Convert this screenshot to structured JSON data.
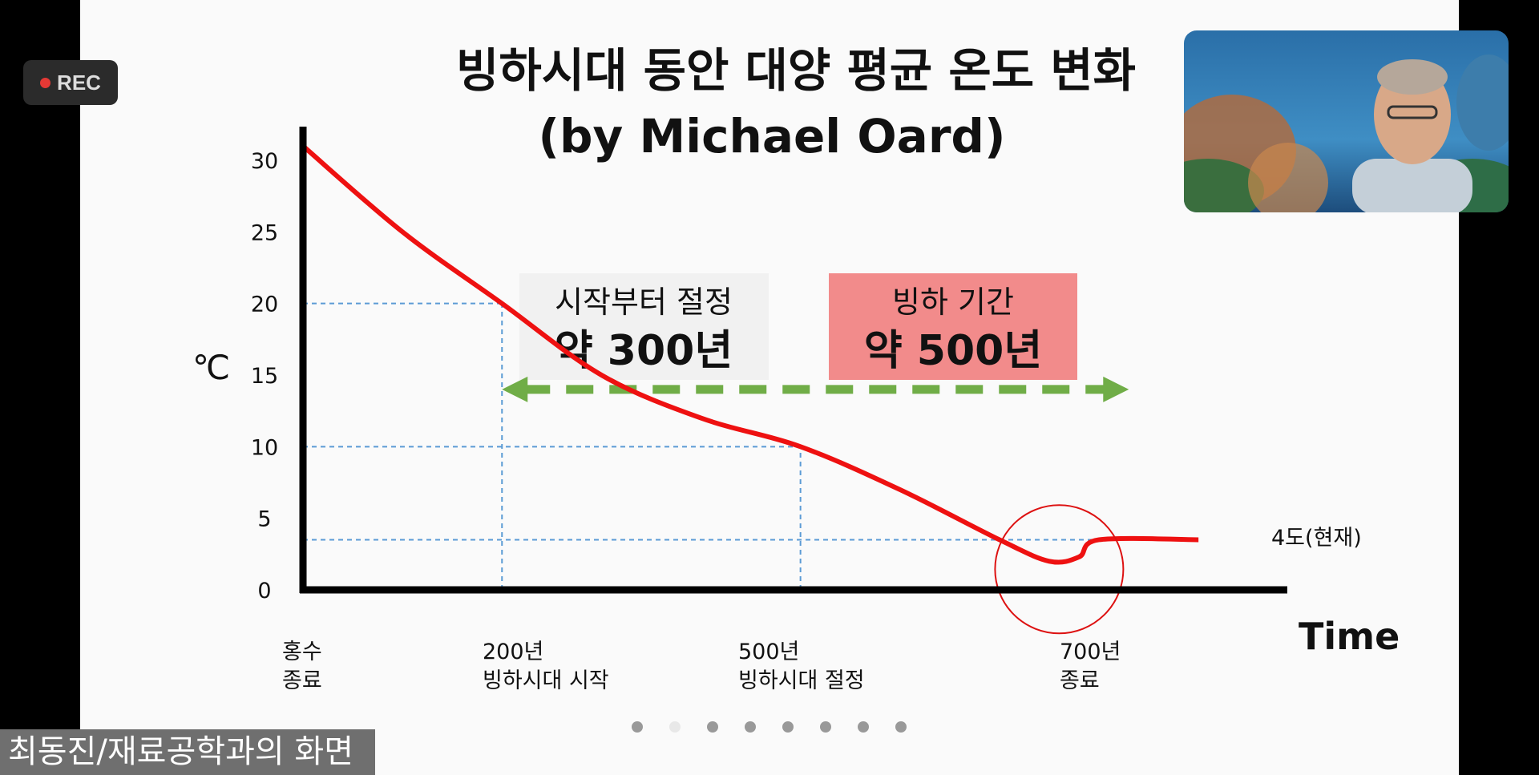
{
  "recording": {
    "label": "REC",
    "color": "#e53935"
  },
  "screen_share": {
    "label": "최동진/재료공학과의 화면"
  },
  "slide": {
    "title_line1": "빙하시대 동안 대양 평균 온도 변화",
    "title_line2": "(by Michael Oard)",
    "pagination": {
      "total": 8,
      "current": 2
    },
    "annotations": {
      "box1_top": "시작부터 절정",
      "box1_big": "약 300년",
      "box2_top": "빙하 기간",
      "box2_big": "약 500년",
      "current_label": "4도(현재)",
      "box2_color": "#f28b8b",
      "box1_color": "#f1f1f1",
      "arrow_color": "#70ad47",
      "curve_color": "#ee1111"
    },
    "x_labels": [
      {
        "l1": "홍수",
        "l2": "종료"
      },
      {
        "l1": "200년",
        "l2": "빙하시대 시작"
      },
      {
        "l1": "500년",
        "l2": "빙하시대 절정"
      },
      {
        "l1": "700년",
        "l2": "종료"
      }
    ]
  },
  "chart_data": {
    "type": "line",
    "ylabel": "℃",
    "xlabel": "Time",
    "yticks": [
      0,
      5,
      10,
      15,
      20,
      25,
      30
    ],
    "ylim": [
      0,
      30
    ],
    "xlim": [
      0,
      920
    ],
    "series": [
      {
        "x": [
          0,
          100,
          200,
          300,
          400,
          500,
          600,
          700,
          750,
          780,
          800,
          900
        ],
        "y": [
          31,
          25,
          20,
          15,
          12,
          10,
          7,
          3.5,
          2,
          2.3,
          3.5,
          3.5
        ]
      }
    ],
    "reference_lines": [
      {
        "y": 20,
        "x_end": 200
      },
      {
        "y": 10,
        "x_end": 500
      },
      {
        "y": 3.5,
        "x_end": 900
      }
    ],
    "reference_vlines": [
      200,
      500
    ],
    "span_arrow": {
      "x_start": 200,
      "x_end": 830,
      "y": 14
    },
    "circle_highlight": {
      "x": 760,
      "y": 2
    }
  }
}
